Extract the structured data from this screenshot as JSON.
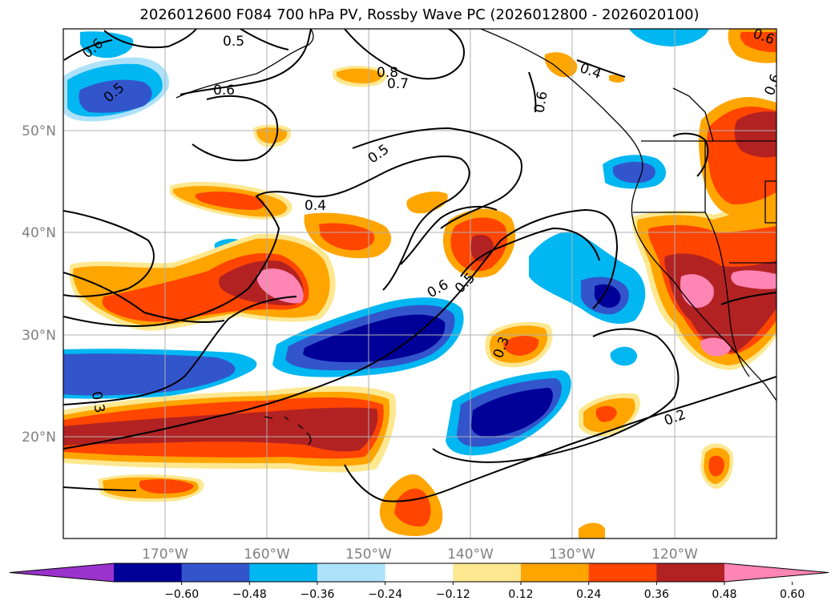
{
  "title": "2026012600 F084 700 hPa PV, Rossby Wave PC (2026012800 - 2026020100)",
  "map": {
    "lon_range": [
      -180,
      -110
    ],
    "lat_range": [
      10,
      60
    ],
    "lat_labels": [
      "20°N",
      "30°N",
      "40°N",
      "50°N"
    ],
    "lon_labels": [
      "170°W",
      "160°W",
      "150°W",
      "140°W",
      "130°W",
      "120°W"
    ],
    "gridlines": true
  },
  "contour_labels": [
    "0.6",
    "0.5",
    "0.6",
    "0.5",
    "0.8",
    "0.7",
    "0.6",
    "0.4",
    "0.6",
    "0.5",
    "0.4",
    "0.6",
    "0.5",
    "0.3",
    "0.3",
    "0.2",
    "0.6"
  ],
  "colorbar": {
    "extend": "both",
    "levels": [
      -0.72,
      -0.6,
      -0.48,
      -0.36,
      -0.24,
      -0.12,
      0.12,
      0.24,
      0.36,
      0.48,
      0.6,
      0.72
    ],
    "tick_labels": [
      "−0.60",
      "−0.48",
      "−0.36",
      "−0.24",
      "−0.12",
      "0.12",
      "0.24",
      "0.36",
      "0.48",
      "0.60"
    ],
    "colors": [
      "#9933cc",
      "#000099",
      "#3355cc",
      "#00b7f2",
      "#aee2fa",
      "#ffffff",
      "#fde890",
      "#ffa500",
      "#ff4500",
      "#b22222",
      "#ff85b4"
    ]
  }
}
